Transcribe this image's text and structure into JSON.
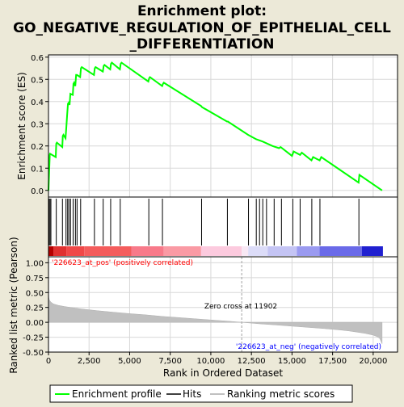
{
  "title": "Enrichment plot: GO_NEGATIVE_REGULATION_OF_EPITHELIAL_CELL_DIFFERENTIATION",
  "title_lines": [
    "Enrichment plot:",
    "GO_NEGATIVE_REGULATION_OF_EPITHELIAL_CELL",
    "_DIFFERENTIATION"
  ],
  "colors": {
    "background": "#ece9d8",
    "enrichment_line": "#00ff00",
    "hit_line": "#000000",
    "metric_fill": "#c0c0c0",
    "zero_cross_line": "#a0a0a0",
    "pos_label": "#ff0000",
    "neg_label": "#0000ff"
  },
  "chart_data": [
    {
      "type": "line",
      "name": "enrichment-score",
      "ylabel": "Enrichment score (ES)",
      "xlim": [
        0,
        21500
      ],
      "ylim": [
        -0.03,
        0.61
      ],
      "yticks": [
        0.0,
        0.1,
        0.2,
        0.3,
        0.4,
        0.5,
        0.6
      ],
      "ytick_labels": [
        "0.0",
        "0.1",
        "0.2",
        "0.3",
        "0.4",
        "0.5",
        "0.6"
      ],
      "grid": true,
      "x": [
        0,
        40,
        80,
        100,
        450,
        480,
        520,
        850,
        880,
        920,
        1050,
        1100,
        1150,
        1200,
        1250,
        1300,
        1350,
        1500,
        1540,
        1580,
        1650,
        1700,
        1750,
        1950,
        2000,
        2050,
        2800,
        2850,
        2900,
        3350,
        3400,
        3450,
        3800,
        3850,
        3900,
        4400,
        4450,
        4500,
        6150,
        6200,
        6250,
        7000,
        7050,
        7100,
        9400,
        9450,
        11000,
        11050,
        12300,
        12800,
        13200,
        13800,
        14200,
        14300,
        15000,
        15100,
        15500,
        15600,
        16200,
        16300,
        16700,
        16800,
        19100,
        19150,
        20550
      ],
      "values": [
        0.0,
        0.08,
        0.16,
        0.165,
        0.15,
        0.21,
        0.215,
        0.195,
        0.245,
        0.25,
        0.235,
        0.285,
        0.34,
        0.39,
        0.395,
        0.385,
        0.435,
        0.43,
        0.48,
        0.485,
        0.47,
        0.52,
        0.52,
        0.51,
        0.55,
        0.555,
        0.52,
        0.55,
        0.555,
        0.535,
        0.56,
        0.565,
        0.545,
        0.57,
        0.575,
        0.545,
        0.57,
        0.575,
        0.49,
        0.505,
        0.51,
        0.47,
        0.48,
        0.485,
        0.38,
        0.375,
        0.31,
        0.31,
        0.25,
        0.23,
        0.22,
        0.2,
        0.19,
        0.195,
        0.155,
        0.175,
        0.16,
        0.17,
        0.135,
        0.15,
        0.135,
        0.15,
        0.035,
        0.07,
        0.0
      ]
    },
    {
      "type": "scatter",
      "name": "hits",
      "xlim": [
        0,
        21500
      ],
      "x": [
        30,
        90,
        150,
        480,
        860,
        1080,
        1180,
        1260,
        1360,
        1520,
        1660,
        1760,
        1980,
        2830,
        3370,
        3830,
        4420,
        6180,
        7020,
        9430,
        11020,
        12320,
        12800,
        13000,
        13200,
        13430,
        13900,
        14350,
        15050,
        15500,
        16220,
        16720,
        19120
      ]
    },
    {
      "type": "heatmap",
      "name": "rank-color-bar",
      "xlim": [
        0,
        21500
      ],
      "segments": [
        {
          "x": [
            0,
            300
          ],
          "color": "#b40000"
        },
        {
          "x": [
            300,
            1100
          ],
          "color": "#e03030"
        },
        {
          "x": [
            1100,
            2200
          ],
          "color": "#f04848"
        },
        {
          "x": [
            2200,
            5100
          ],
          "color": "#f45c5c"
        },
        {
          "x": [
            5100,
            7100
          ],
          "color": "#f87a8a"
        },
        {
          "x": [
            7100,
            9400
          ],
          "color": "#fa9aa4"
        },
        {
          "x": [
            9400,
            11900
          ],
          "color": "#fccade"
        },
        {
          "x": [
            11900,
            12300
          ],
          "color": "#f8e8f4"
        },
        {
          "x": [
            12300,
            13500
          ],
          "color": "#dcdcf8"
        },
        {
          "x": [
            13500,
            15300
          ],
          "color": "#c4c4f4"
        },
        {
          "x": [
            15300,
            16700
          ],
          "color": "#9a9af0"
        },
        {
          "x": [
            16700,
            19300
          ],
          "color": "#6a6ae8"
        },
        {
          "x": [
            19300,
            20600
          ],
          "color": "#2020d0"
        }
      ]
    },
    {
      "type": "area",
      "name": "ranked-list-metric",
      "xlabel": "Rank in Ordered Dataset",
      "ylabel": "Ranked list metric (Pearson)",
      "xlim": [
        0,
        21500
      ],
      "ylim": [
        -0.5,
        1.1
      ],
      "yticks": [
        -0.5,
        -0.25,
        0.0,
        0.25,
        0.5,
        0.75,
        1.0
      ],
      "ytick_labels": [
        "-0.50",
        "-0.25",
        "0.00",
        "0.25",
        "0.50",
        "0.75",
        "1.00"
      ],
      "xticks": [
        0,
        2500,
        5000,
        7500,
        10000,
        12500,
        15000,
        17500,
        20000
      ],
      "xtick_labels": [
        "0",
        "2,500",
        "5,000",
        "7,500",
        "10,000",
        "12,500",
        "15,000",
        "17,500",
        "20,000"
      ],
      "x": [
        0,
        20,
        60,
        150,
        300,
        600,
        1000,
        1500,
        2000,
        3000,
        4000,
        5000,
        6000,
        7000,
        8000,
        9000,
        10000,
        11000,
        11902,
        13000,
        14000,
        15000,
        16000,
        17000,
        18000,
        18500,
        19000,
        19500,
        20000,
        20200,
        20400,
        20550
      ],
      "values": [
        0.52,
        0.42,
        0.37,
        0.34,
        0.31,
        0.285,
        0.265,
        0.245,
        0.225,
        0.195,
        0.17,
        0.145,
        0.125,
        0.1,
        0.08,
        0.06,
        0.04,
        0.02,
        0.0,
        -0.025,
        -0.045,
        -0.065,
        -0.085,
        -0.105,
        -0.13,
        -0.145,
        -0.165,
        -0.185,
        -0.215,
        -0.235,
        -0.27,
        -0.36
      ],
      "annotations": {
        "pos": "'226623_at_pos' (positively correlated)",
        "neg": "'226623_at_neg' (negatively correlated)",
        "zero_cross": "Zero cross at 11902",
        "zero_cross_rank": 11902
      }
    }
  ],
  "legend": {
    "items": [
      {
        "label": "Enrichment profile",
        "color": "#00ff00"
      },
      {
        "label": "Hits",
        "color": "#000000"
      },
      {
        "label": "Ranking metric scores",
        "color": "#c0c0c0"
      }
    ]
  }
}
